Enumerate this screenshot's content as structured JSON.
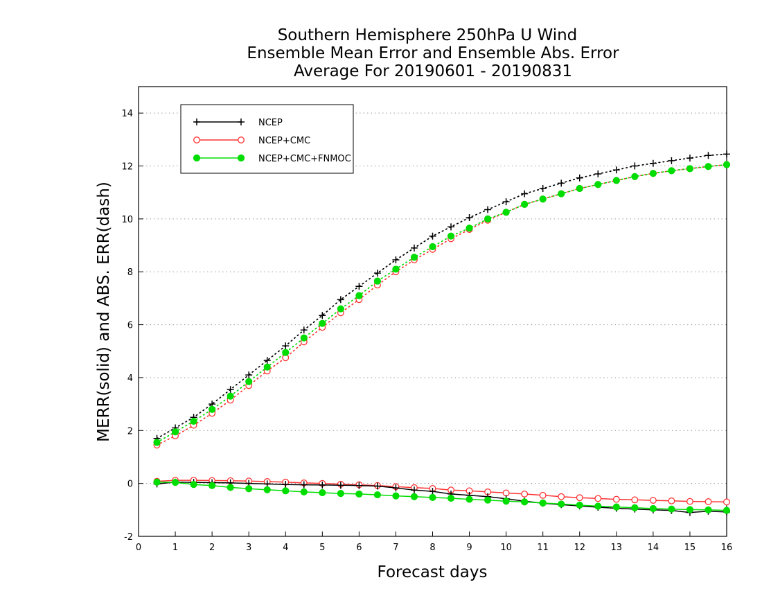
{
  "chart_data": {
    "type": "line",
    "title": [
      "Southern Hemisphere 250hPa U Wind",
      "Ensemble Mean Error and Ensemble Abs. Error",
      "Average For 20190601 - 20190831"
    ],
    "xlabel": "Forecast days",
    "ylabel": "MERR(solid) and ABS. ERR(dash)",
    "xlim": [
      0,
      16
    ],
    "ylim": [
      -2,
      15
    ],
    "xticks": [
      0,
      1,
      2,
      3,
      4,
      5,
      6,
      7,
      8,
      9,
      10,
      11,
      12,
      13,
      14,
      15,
      16
    ],
    "yticks": [
      -2,
      0,
      2,
      4,
      6,
      8,
      10,
      12,
      14
    ],
    "grid": "horizontal dotted",
    "legend_position": "top-left",
    "x": [
      0.5,
      1.0,
      1.5,
      2.0,
      2.5,
      3.0,
      3.5,
      4.0,
      4.5,
      5.0,
      5.5,
      6.0,
      6.5,
      7.0,
      7.5,
      8.0,
      8.5,
      9.0,
      9.5,
      10.0,
      10.5,
      11.0,
      11.5,
      12.0,
      12.5,
      13.0,
      13.5,
      14.0,
      14.5,
      15.0,
      15.5,
      16.0
    ],
    "series": [
      {
        "name": "NCEP",
        "color": "#000000",
        "marker": "plus",
        "merr": [
          -0.02,
          0.05,
          0.04,
          0.03,
          0.02,
          0.0,
          -0.02,
          -0.04,
          -0.05,
          -0.06,
          -0.07,
          -0.08,
          -0.1,
          -0.17,
          -0.25,
          -0.3,
          -0.4,
          -0.45,
          -0.5,
          -0.58,
          -0.67,
          -0.75,
          -0.8,
          -0.85,
          -0.9,
          -0.94,
          -0.97,
          -1.0,
          -1.02,
          -1.1,
          -1.05,
          -1.08
        ],
        "abs_err": [
          1.7,
          2.1,
          2.5,
          3.0,
          3.55,
          4.1,
          4.65,
          5.2,
          5.8,
          6.35,
          6.95,
          7.45,
          7.95,
          8.45,
          8.9,
          9.35,
          9.7,
          10.05,
          10.35,
          10.65,
          10.95,
          11.15,
          11.35,
          11.55,
          11.7,
          11.85,
          12.0,
          12.1,
          12.2,
          12.3,
          12.4,
          12.45
        ]
      },
      {
        "name": "NCEP+CMC",
        "color": "#ff3333",
        "marker": "open-circle",
        "merr": [
          0.08,
          0.12,
          0.12,
          0.11,
          0.1,
          0.09,
          0.07,
          0.05,
          0.02,
          0.0,
          -0.03,
          -0.05,
          -0.08,
          -0.12,
          -0.16,
          -0.19,
          -0.25,
          -0.28,
          -0.32,
          -0.36,
          -0.4,
          -0.45,
          -0.5,
          -0.54,
          -0.57,
          -0.6,
          -0.62,
          -0.64,
          -0.66,
          -0.68,
          -0.69,
          -0.7
        ],
        "abs_err": [
          1.45,
          1.8,
          2.2,
          2.65,
          3.15,
          3.7,
          4.25,
          4.75,
          5.35,
          5.9,
          6.45,
          6.95,
          7.5,
          8.0,
          8.45,
          8.85,
          9.25,
          9.6,
          9.95,
          10.25,
          10.55,
          10.75,
          10.95,
          11.15,
          11.3,
          11.45,
          11.6,
          11.72,
          11.82,
          11.9,
          11.98,
          12.05
        ]
      },
      {
        "name": "NCEP+CMC+FNMOC",
        "color": "#00dd00",
        "marker": "filled-circle",
        "merr": [
          0.05,
          0.04,
          -0.04,
          -0.08,
          -0.15,
          -0.2,
          -0.24,
          -0.28,
          -0.32,
          -0.35,
          -0.38,
          -0.4,
          -0.43,
          -0.47,
          -0.5,
          -0.53,
          -0.56,
          -0.6,
          -0.63,
          -0.67,
          -0.7,
          -0.74,
          -0.78,
          -0.82,
          -0.86,
          -0.89,
          -0.92,
          -0.95,
          -0.97,
          -0.99,
          -1.0,
          -1.02
        ],
        "abs_err": [
          1.55,
          1.95,
          2.35,
          2.8,
          3.3,
          3.85,
          4.4,
          4.95,
          5.5,
          6.05,
          6.6,
          7.1,
          7.65,
          8.1,
          8.55,
          8.95,
          9.35,
          9.65,
          10.0,
          10.25,
          10.55,
          10.75,
          10.95,
          11.15,
          11.3,
          11.45,
          11.6,
          11.72,
          11.82,
          11.9,
          11.98,
          12.05
        ]
      }
    ]
  }
}
